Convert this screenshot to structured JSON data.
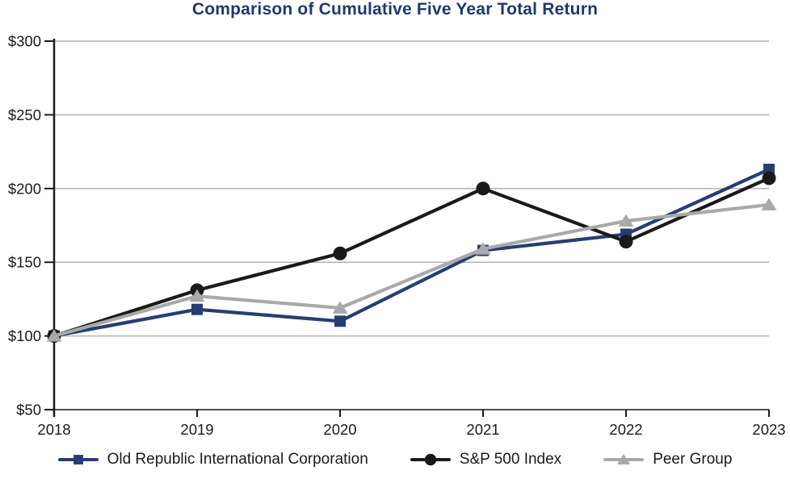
{
  "chart_data": {
    "type": "line",
    "title": "Comparison of Cumulative Five Year Total Return",
    "categories": [
      "2018",
      "2019",
      "2020",
      "2021",
      "2022",
      "2023"
    ],
    "series": [
      {
        "name": "Old Republic International Corporation",
        "marker": "square",
        "color": "#263e72",
        "values": [
          100,
          118,
          110,
          158,
          169,
          213
        ]
      },
      {
        "name": "S&P 500 Index",
        "marker": "circle",
        "color": "#1a1a1a",
        "values": [
          100,
          131,
          156,
          200,
          164,
          207
        ]
      },
      {
        "name": "Peer Group",
        "marker": "triangle",
        "color": "#a9a9a9",
        "values": [
          100,
          127,
          119,
          159,
          178,
          189
        ]
      }
    ],
    "xlabel": "",
    "ylabel": "",
    "ylim": [
      50,
      300
    ],
    "ytick_interval": 50,
    "ytick_labels": [
      "$50",
      "$100",
      "$150",
      "$200",
      "$250",
      "$300"
    ],
    "grid": true,
    "legend_position": "bottom"
  },
  "colors": {
    "title": "#21386b",
    "axis": "#1a1a1a",
    "x_axis_line": "#4d4d4d",
    "gridline": "#b3b3b3",
    "tick_label": "#1a1a1a",
    "background": "#ffffff"
  }
}
